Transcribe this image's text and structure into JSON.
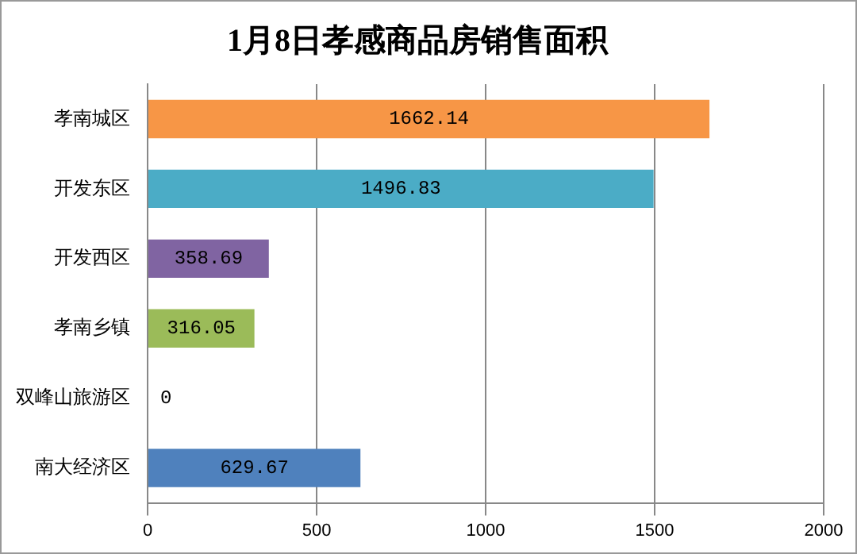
{
  "chart_data": {
    "type": "bar",
    "orientation": "horizontal",
    "title": "1月8日孝感商品房销售面积",
    "categories": [
      "孝南城区",
      "开发东区",
      "开发西区",
      "孝南乡镇",
      "双峰山旅游区",
      "南大经济区"
    ],
    "values": [
      1662.14,
      1496.83,
      358.69,
      316.05,
      0,
      629.67
    ],
    "colors": [
      "#f79646",
      "#4bacc6",
      "#8064a2",
      "#9bbb59",
      "#c0504d",
      "#4f81bd"
    ],
    "xlim": [
      0,
      2000
    ],
    "xticks": [
      0,
      500,
      1000,
      1500,
      2000
    ],
    "grid": "x",
    "data_labels": true
  }
}
